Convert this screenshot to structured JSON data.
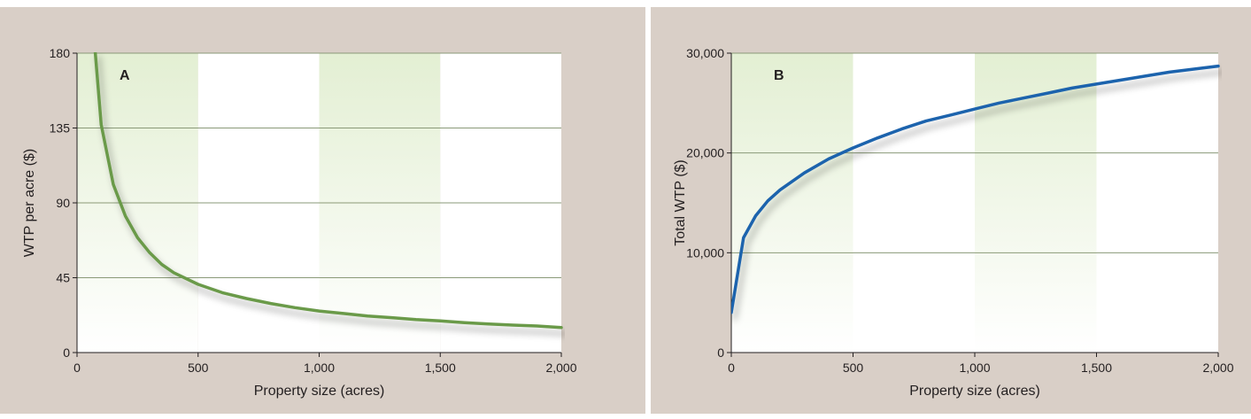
{
  "chart_data": [
    {
      "type": "line",
      "panel_label": "A",
      "xlabel": "Property size (acres)",
      "ylabel": "WTP per acre ($)",
      "xlim": [
        0,
        2000
      ],
      "ylim": [
        0,
        180
      ],
      "x_ticks": [
        "0",
        "500",
        "1,000",
        "1,500",
        "2,000"
      ],
      "y_ticks": [
        "0",
        "45",
        "90",
        "135",
        "180"
      ],
      "x_tick_values": [
        0,
        500,
        1000,
        1500,
        2000
      ],
      "y_tick_values": [
        0,
        45,
        90,
        135,
        180
      ],
      "grid": "horizontal",
      "line_color": "#6b9a4a",
      "series": [
        {
          "x": [
            75,
            100,
            150,
            200,
            250,
            300,
            350,
            400,
            500,
            600,
            700,
            800,
            900,
            1000,
            1100,
            1200,
            1300,
            1400,
            1500,
            1600,
            1700,
            1800,
            1900,
            2000
          ],
          "values": [
            181,
            137,
            101,
            82,
            69,
            60,
            53,
            48,
            41,
            36,
            32.5,
            29.5,
            27,
            25,
            23.5,
            22,
            21,
            19.8,
            19,
            18,
            17.2,
            16.5,
            16,
            15
          ]
        }
      ]
    },
    {
      "type": "line",
      "panel_label": "B",
      "xlabel": "Property size (acres)",
      "ylabel": "Total WTP ($)",
      "xlim": [
        0,
        2000
      ],
      "ylim": [
        0,
        30000
      ],
      "x_ticks": [
        "0",
        "500",
        "1,000",
        "1,500",
        "2,000"
      ],
      "y_ticks": [
        "0",
        "10,000",
        "20,000",
        "30,000"
      ],
      "x_tick_values": [
        0,
        500,
        1000,
        1500,
        2000
      ],
      "y_tick_values": [
        0,
        10000,
        20000,
        30000
      ],
      "grid": "horizontal",
      "line_color": "#1f64ad",
      "series": [
        {
          "x": [
            0,
            50,
            100,
            150,
            200,
            300,
            400,
            500,
            600,
            700,
            800,
            900,
            1000,
            1100,
            1200,
            1300,
            1400,
            1500,
            1600,
            1700,
            1800,
            1900,
            2000
          ],
          "values": [
            4000,
            11500,
            13700,
            15200,
            16300,
            18000,
            19400,
            20500,
            21500,
            22400,
            23200,
            23800,
            24400,
            25000,
            25500,
            26000,
            26500,
            26900,
            27300,
            27700,
            28100,
            28400,
            28700
          ]
        }
      ]
    }
  ]
}
